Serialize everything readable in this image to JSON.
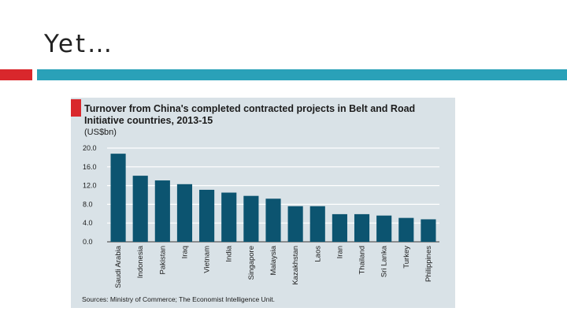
{
  "slide": {
    "title": "Yet…",
    "accent_red": "#d9272c",
    "accent_teal": "#2aa1b8"
  },
  "chart_data": {
    "type": "bar",
    "title": "Turnover from China's completed contracted projects in Belt and Road Initiative countries, 2013-15",
    "unit": "(US$bn)",
    "source": "Sources: Ministry of Commerce; The Economist Intelligence Unit.",
    "categories": [
      "Saudi Arabia",
      "Indonesia",
      "Pakistan",
      "Iraq",
      "Vietnam",
      "India",
      "Singapore",
      "Malaysia",
      "Kazakhstan",
      "Laos",
      "Iran",
      "Thailand",
      "Sri Lanka",
      "Turkey",
      "Philippines"
    ],
    "values": [
      18.8,
      14.1,
      13.1,
      12.3,
      11.1,
      10.5,
      9.8,
      9.2,
      7.6,
      7.6,
      5.9,
      5.9,
      5.6,
      5.1,
      4.8
    ],
    "yticks": [
      "0.0",
      "4.0",
      "8.0",
      "12.0",
      "16.0",
      "20.0"
    ],
    "ylim": [
      0,
      20
    ],
    "bar_color": "#0c5470",
    "background": "#d9e2e7",
    "grid": true
  }
}
